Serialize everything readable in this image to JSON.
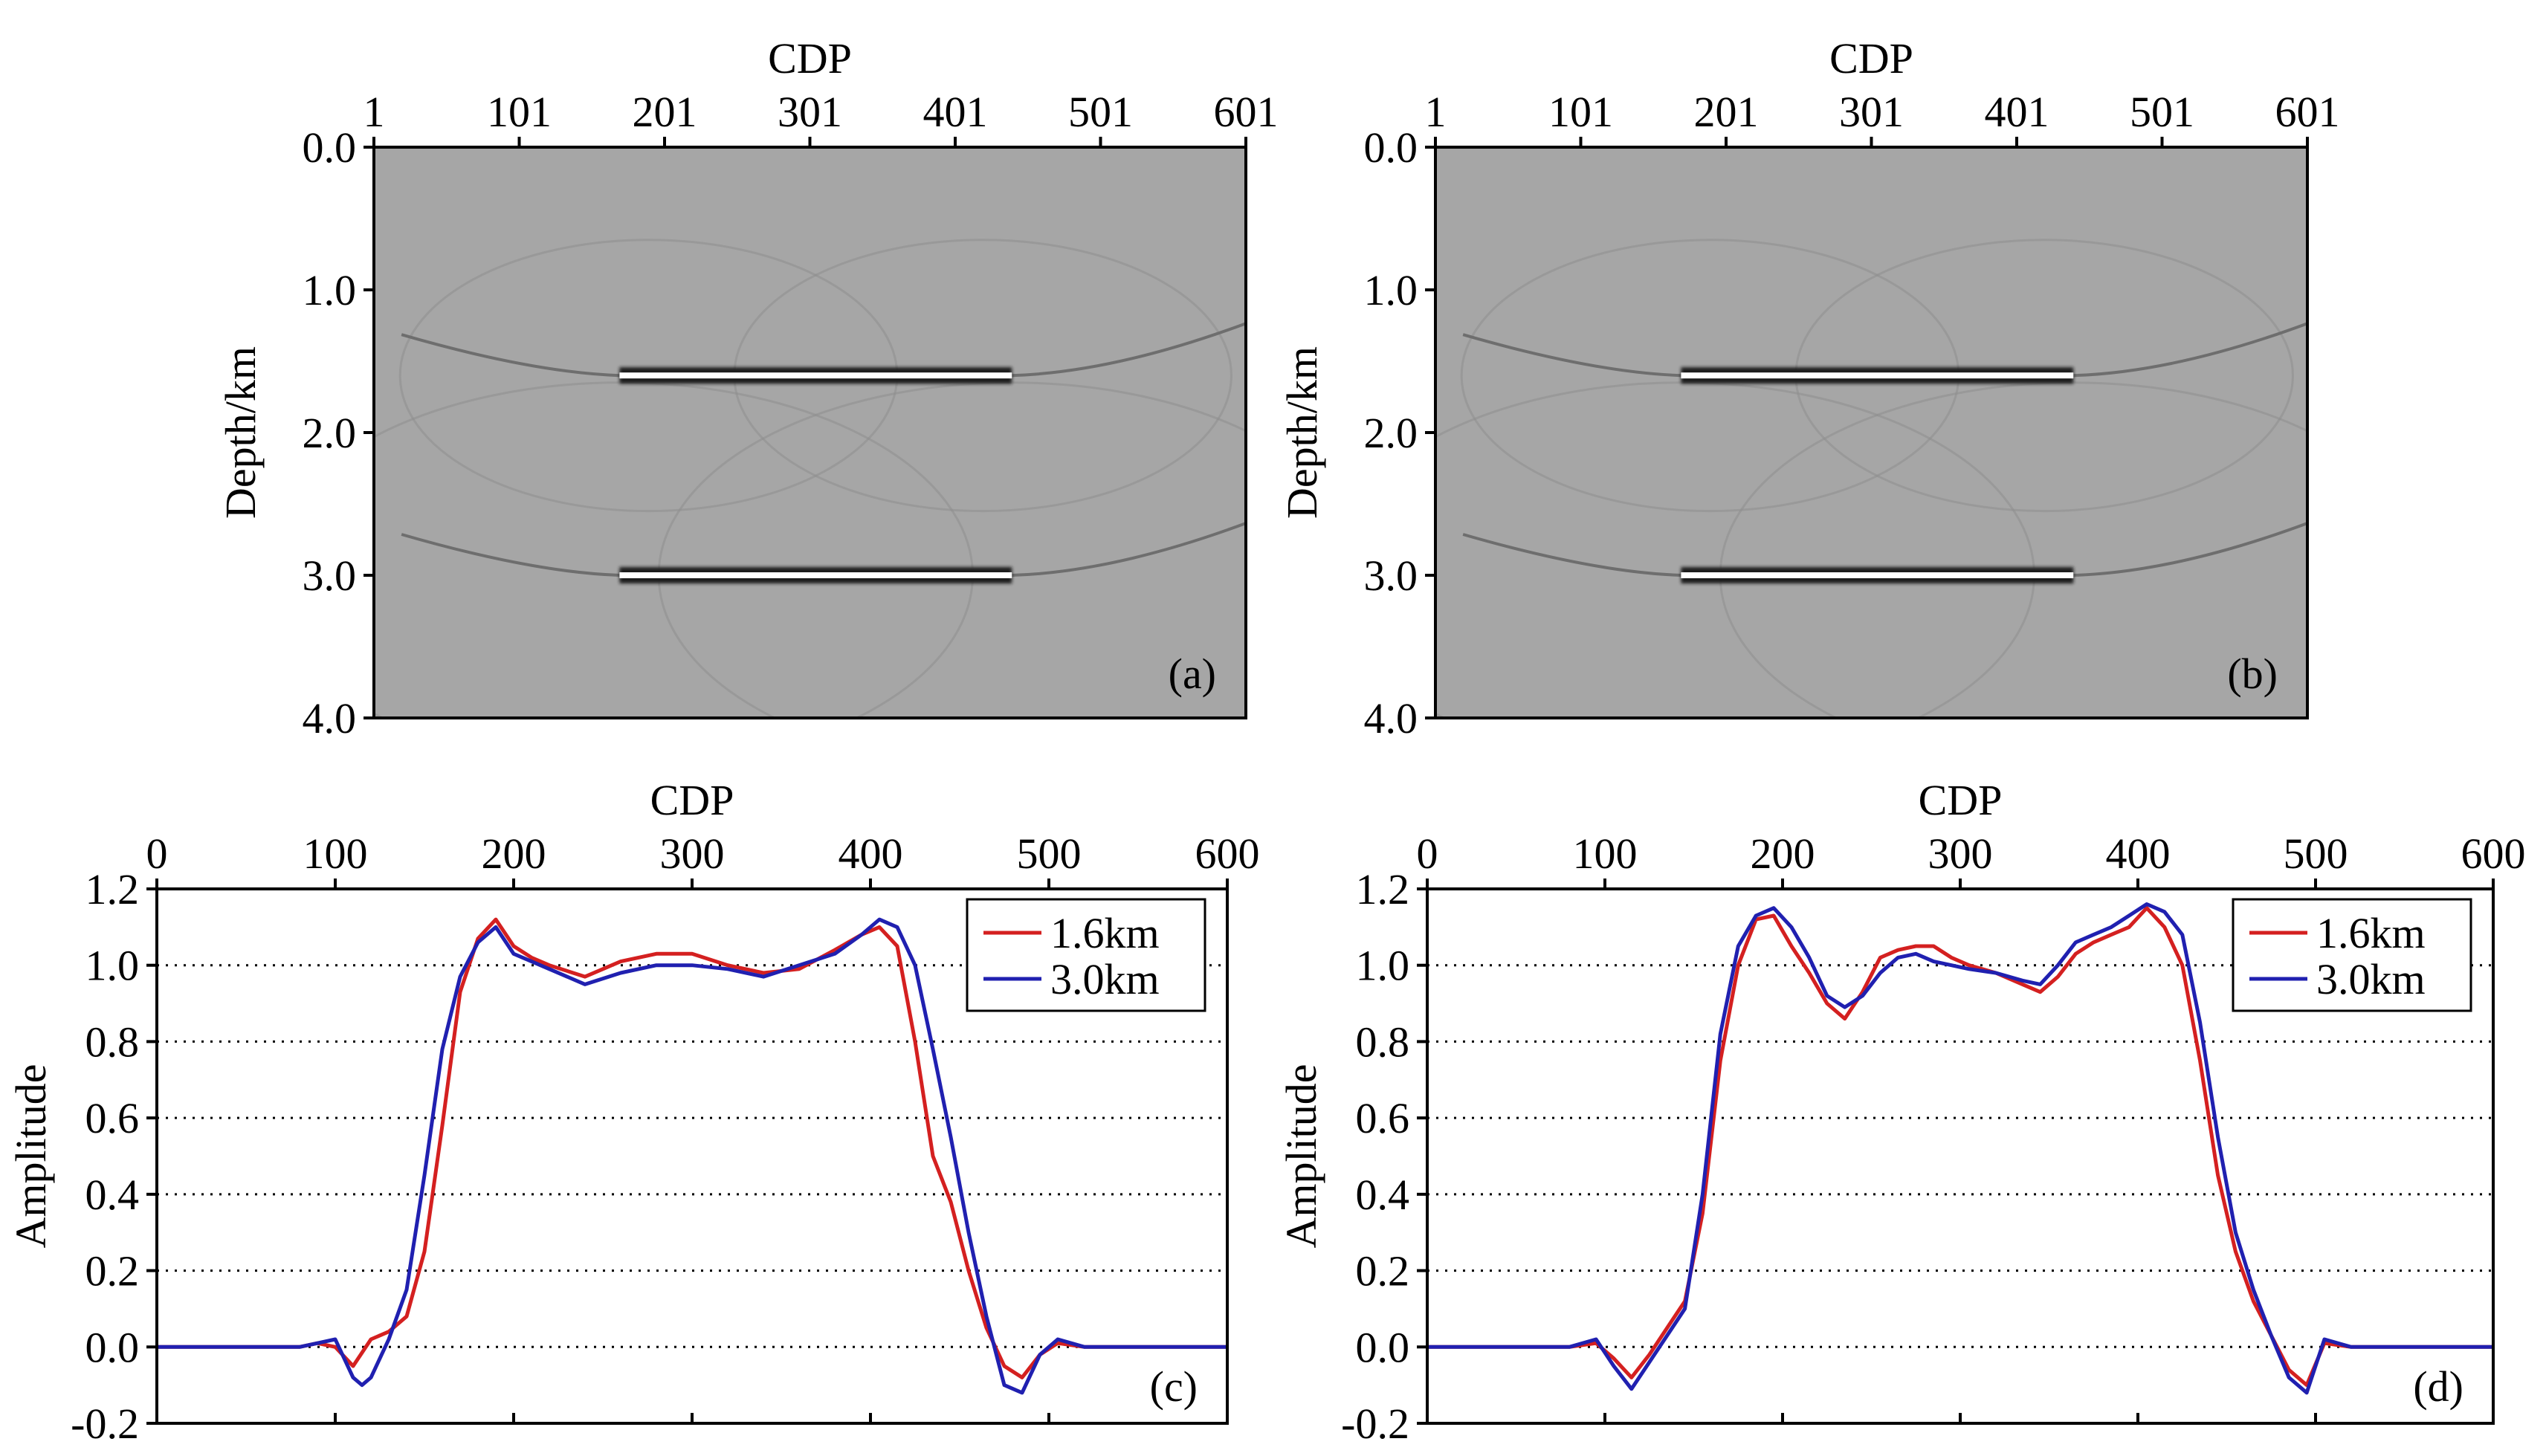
{
  "chart_data": [
    {
      "type": "heatmap",
      "panel_label": "(a)",
      "xlabel": "CDP",
      "ylabel": "Depth/km",
      "xticks": [
        "1",
        "101",
        "201",
        "301",
        "401",
        "501",
        "601"
      ],
      "yticks": [
        "0.0",
        "1.0",
        "2.0",
        "3.0",
        "4.0"
      ],
      "xlim": [
        1,
        601
      ],
      "ylim": [
        0.0,
        4.0
      ],
      "background_color": "#a6a6a6",
      "reflectors": [
        {
          "depth_km": 1.6,
          "cdp_start": 170,
          "cdp_end": 440,
          "taper_start": 20,
          "taper_end": 601
        },
        {
          "depth_km": 3.0,
          "cdp_start": 170,
          "cdp_end": 440,
          "taper_start": 20,
          "taper_end": 601
        }
      ]
    },
    {
      "type": "heatmap",
      "panel_label": "(b)",
      "xlabel": "CDP",
      "ylabel": "Depth/km",
      "xticks": [
        "1",
        "101",
        "201",
        "301",
        "401",
        "501",
        "601"
      ],
      "yticks": [
        "0.0",
        "1.0",
        "2.0",
        "3.0",
        "4.0"
      ],
      "xlim": [
        1,
        601
      ],
      "ylim": [
        0.0,
        4.0
      ],
      "background_color": "#a6a6a6",
      "reflectors": [
        {
          "depth_km": 1.6,
          "cdp_start": 170,
          "cdp_end": 440,
          "taper_start": 20,
          "taper_end": 601
        },
        {
          "depth_km": 3.0,
          "cdp_start": 170,
          "cdp_end": 440,
          "taper_start": 20,
          "taper_end": 601
        }
      ]
    },
    {
      "type": "line",
      "panel_label": "(c)",
      "xlabel": "CDP",
      "ylabel": "Amplitude",
      "xticks": [
        "0",
        "100",
        "200",
        "300",
        "400",
        "500",
        "600"
      ],
      "yticks": [
        "1.2",
        "1.0",
        "0.8",
        "0.6",
        "0.4",
        "0.2",
        "0.0",
        "-0.2"
      ],
      "xlim": [
        0,
        600
      ],
      "ylim": [
        -0.2,
        1.2
      ],
      "grid": "horizontal-dotted",
      "legend": "top-right",
      "series": [
        {
          "name": "1.6km",
          "color": "#d42020",
          "x": [
            0,
            80,
            90,
            100,
            110,
            120,
            130,
            140,
            150,
            160,
            170,
            180,
            190,
            200,
            210,
            220,
            240,
            260,
            280,
            300,
            320,
            340,
            360,
            380,
            395,
            405,
            415,
            425,
            435,
            445,
            455,
            465,
            475,
            485,
            495,
            505,
            520,
            540,
            600
          ],
          "y": [
            0.0,
            0.0,
            0.01,
            0.0,
            -0.05,
            0.02,
            0.04,
            0.08,
            0.25,
            0.58,
            0.93,
            1.07,
            1.12,
            1.05,
            1.02,
            1.0,
            0.97,
            1.01,
            1.03,
            1.03,
            1.0,
            0.98,
            0.99,
            1.04,
            1.08,
            1.1,
            1.05,
            0.8,
            0.5,
            0.38,
            0.2,
            0.05,
            -0.05,
            -0.08,
            -0.02,
            0.01,
            0.0,
            0.0,
            0.0
          ]
        },
        {
          "name": "3.0km",
          "color": "#2020b0",
          "x": [
            0,
            80,
            90,
            100,
            110,
            115,
            120,
            130,
            140,
            150,
            160,
            170,
            180,
            190,
            200,
            210,
            240,
            260,
            280,
            300,
            320,
            340,
            360,
            380,
            395,
            405,
            415,
            425,
            435,
            445,
            455,
            465,
            475,
            485,
            495,
            505,
            520,
            540,
            600
          ],
          "y": [
            0.0,
            0.0,
            0.01,
            0.02,
            -0.08,
            -0.1,
            -0.08,
            0.02,
            0.15,
            0.45,
            0.78,
            0.97,
            1.06,
            1.1,
            1.03,
            1.01,
            0.95,
            0.98,
            1.0,
            1.0,
            0.99,
            0.97,
            1.0,
            1.03,
            1.08,
            1.12,
            1.1,
            1.0,
            0.78,
            0.55,
            0.3,
            0.08,
            -0.1,
            -0.12,
            -0.02,
            0.02,
            0.0,
            0.0,
            0.0
          ]
        }
      ]
    },
    {
      "type": "line",
      "panel_label": "(d)",
      "xlabel": "CDP",
      "ylabel": "Amplitude",
      "xticks": [
        "0",
        "100",
        "200",
        "300",
        "400",
        "500",
        "600"
      ],
      "yticks": [
        "1.2",
        "1.0",
        "0.8",
        "0.6",
        "0.4",
        "0.2",
        "0.0",
        "-0.2"
      ],
      "xlim": [
        0,
        600
      ],
      "ylim": [
        -0.2,
        1.2
      ],
      "grid": "horizontal-dotted",
      "legend": "top-right",
      "series": [
        {
          "name": "1.6km",
          "color": "#d42020",
          "x": [
            0,
            80,
            95,
            105,
            115,
            125,
            135,
            145,
            155,
            165,
            175,
            185,
            195,
            205,
            215,
            225,
            235,
            245,
            255,
            265,
            275,
            285,
            295,
            305,
            320,
            335,
            345,
            355,
            365,
            375,
            385,
            395,
            405,
            415,
            425,
            435,
            445,
            455,
            465,
            475,
            485,
            495,
            505,
            520,
            600
          ],
          "y": [
            0.0,
            0.0,
            0.01,
            -0.03,
            -0.08,
            -0.02,
            0.05,
            0.12,
            0.35,
            0.75,
            1.0,
            1.12,
            1.13,
            1.05,
            0.98,
            0.9,
            0.86,
            0.93,
            1.02,
            1.04,
            1.05,
            1.05,
            1.02,
            1.0,
            0.98,
            0.95,
            0.93,
            0.97,
            1.03,
            1.06,
            1.08,
            1.1,
            1.15,
            1.1,
            1.0,
            0.75,
            0.45,
            0.25,
            0.12,
            0.03,
            -0.06,
            -0.1,
            0.01,
            0.0,
            0.0
          ]
        },
        {
          "name": "3.0km",
          "color": "#2020b0",
          "x": [
            0,
            80,
            95,
            105,
            115,
            125,
            135,
            145,
            155,
            165,
            175,
            185,
            195,
            205,
            215,
            225,
            235,
            245,
            255,
            265,
            275,
            285,
            295,
            305,
            320,
            335,
            345,
            355,
            365,
            375,
            385,
            395,
            405,
            415,
            425,
            435,
            445,
            455,
            465,
            475,
            485,
            495,
            505,
            520,
            600
          ],
          "y": [
            0.0,
            0.0,
            0.02,
            -0.05,
            -0.11,
            -0.04,
            0.03,
            0.1,
            0.4,
            0.82,
            1.05,
            1.13,
            1.15,
            1.1,
            1.02,
            0.92,
            0.89,
            0.92,
            0.98,
            1.02,
            1.03,
            1.01,
            1.0,
            0.99,
            0.98,
            0.96,
            0.95,
            1.0,
            1.06,
            1.08,
            1.1,
            1.13,
            1.16,
            1.14,
            1.08,
            0.85,
            0.55,
            0.3,
            0.15,
            0.03,
            -0.08,
            -0.12,
            0.02,
            0.0,
            0.0
          ]
        }
      ]
    }
  ]
}
